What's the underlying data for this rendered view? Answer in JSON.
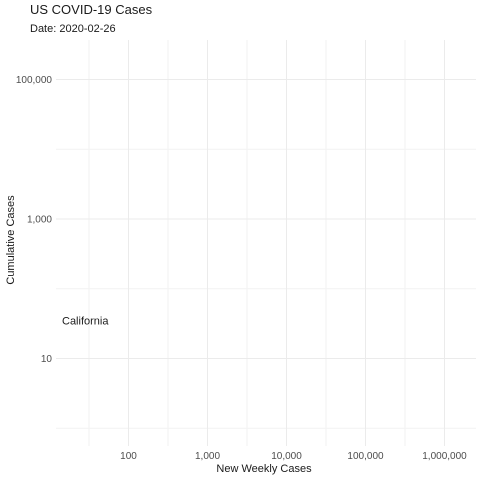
{
  "chart_data": {
    "type": "scatter",
    "title": "US COVID-19 Cases",
    "subtitle": "Date: 2020-02-26",
    "xlabel": "New Weekly Cases",
    "ylabel": "Cumulative Cases",
    "x_scale": "log10",
    "y_scale": "log10",
    "xlim": [
      10,
      3000000
    ],
    "ylim": [
      1,
      500000
    ],
    "x_ticks": [
      {
        "value": 100,
        "label": "100"
      },
      {
        "value": 1000,
        "label": "1,000"
      },
      {
        "value": 10000,
        "label": "10,000"
      },
      {
        "value": 100000,
        "label": "100,000"
      },
      {
        "value": 1000000,
        "label": "1,000,000"
      }
    ],
    "y_ticks": [
      {
        "value": 10,
        "label": "10"
      },
      {
        "value": 1000,
        "label": "1,000"
      },
      {
        "value": 100000,
        "label": "100,000"
      }
    ],
    "grid": true,
    "points": [
      {
        "label": "California",
        "x": 10,
        "y": 35
      }
    ]
  }
}
